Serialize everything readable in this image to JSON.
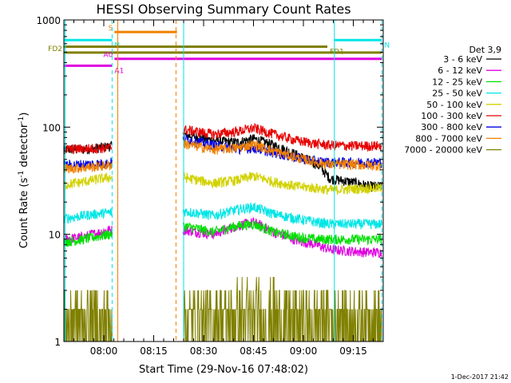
{
  "chart_data": {
    "type": "line",
    "title": "HESSI Observing Summary Count Rates",
    "xlabel": "Start Time (29-Nov-16 07:48:02)",
    "ylabel_parts": [
      "Count Rate (s",
      "-1",
      " detector",
      "-1",
      ")"
    ],
    "yscale": "log",
    "ylim": [
      1,
      1000
    ],
    "xlim_minutes": [
      0,
      96
    ],
    "x_ticks": [
      {
        "label": "08:00",
        "min": 12
      },
      {
        "label": "08:15",
        "min": 27
      },
      {
        "label": "08:30",
        "min": 42
      },
      {
        "label": "08:45",
        "min": 57
      },
      {
        "label": "09:00",
        "min": 72
      },
      {
        "label": "09:15",
        "min": 87
      }
    ],
    "y_ticks": [
      {
        "label": "1",
        "value": 1
      },
      {
        "label": "10",
        "value": 10
      },
      {
        "label": "100",
        "value": 100
      },
      {
        "label": "1000",
        "value": 1000
      }
    ],
    "legend_title": "Det 3,9",
    "legend_position": "right",
    "series": [
      {
        "name": "3 - 6 keV",
        "color": "#000000",
        "points": [
          [
            0,
            62
          ],
          [
            6,
            62
          ],
          [
            10,
            64
          ],
          [
            13.5,
            66
          ],
          [
            36,
            85
          ],
          [
            45,
            75
          ],
          [
            52,
            72
          ],
          [
            57,
            78
          ],
          [
            63,
            68
          ],
          [
            70,
            55
          ],
          [
            76,
            45
          ],
          [
            80,
            33
          ],
          [
            86,
            31
          ],
          [
            92,
            28
          ]
        ]
      },
      {
        "name": "6 - 12 keV",
        "color": "#e000e0",
        "points": [
          [
            0,
            9
          ],
          [
            6,
            9.5
          ],
          [
            13.5,
            11
          ],
          [
            36,
            11
          ],
          [
            45,
            10
          ],
          [
            52,
            12
          ],
          [
            57,
            13
          ],
          [
            63,
            10.5
          ],
          [
            70,
            8.8
          ],
          [
            76,
            8
          ],
          [
            80,
            7.2
          ],
          [
            86,
            7
          ],
          [
            92,
            6.8
          ]
        ]
      },
      {
        "name": "12 - 25 keV",
        "color": "#00e000",
        "points": [
          [
            0,
            8.5
          ],
          [
            6,
            9
          ],
          [
            13.5,
            10
          ],
          [
            36,
            12
          ],
          [
            45,
            10.5
          ],
          [
            52,
            12
          ],
          [
            57,
            12.5
          ],
          [
            63,
            10.5
          ],
          [
            70,
            9.5
          ],
          [
            76,
            9
          ],
          [
            80,
            9
          ],
          [
            86,
            9
          ],
          [
            92,
            9
          ]
        ]
      },
      {
        "name": "25 - 50 keV",
        "color": "#00e6e6",
        "points": [
          [
            0,
            14
          ],
          [
            6,
            15
          ],
          [
            13.5,
            16
          ],
          [
            36,
            16.5
          ],
          [
            45,
            15
          ],
          [
            52,
            17
          ],
          [
            57,
            18
          ],
          [
            63,
            15.5
          ],
          [
            70,
            14
          ],
          [
            76,
            13
          ],
          [
            80,
            12.5
          ],
          [
            86,
            12.5
          ],
          [
            92,
            12.5
          ]
        ]
      },
      {
        "name": "50 - 100 keV",
        "color": "#d2d200",
        "points": [
          [
            0,
            29
          ],
          [
            6,
            31
          ],
          [
            13.5,
            34
          ],
          [
            36,
            34
          ],
          [
            45,
            30
          ],
          [
            52,
            32
          ],
          [
            57,
            35
          ],
          [
            63,
            31
          ],
          [
            70,
            28
          ],
          [
            76,
            27
          ],
          [
            80,
            26
          ],
          [
            86,
            26.5
          ],
          [
            92,
            27
          ]
        ]
      },
      {
        "name": "100 - 300 keV",
        "color": "#e60000",
        "points": [
          [
            0,
            62
          ],
          [
            6,
            63
          ],
          [
            13.5,
            64
          ],
          [
            36,
            95
          ],
          [
            45,
            86
          ],
          [
            52,
            91
          ],
          [
            57,
            98
          ],
          [
            63,
            86
          ],
          [
            70,
            75
          ],
          [
            76,
            70
          ],
          [
            80,
            68
          ],
          [
            86,
            67
          ],
          [
            92,
            67
          ]
        ]
      },
      {
        "name": "300 - 800 keV",
        "color": "#0000e6",
        "points": [
          [
            0,
            44
          ],
          [
            6,
            45
          ],
          [
            13.5,
            46
          ],
          [
            36,
            78
          ],
          [
            45,
            68
          ],
          [
            52,
            63
          ],
          [
            57,
            64
          ],
          [
            63,
            58
          ],
          [
            70,
            52
          ],
          [
            76,
            48
          ],
          [
            80,
            47
          ],
          [
            86,
            47
          ],
          [
            92,
            47
          ]
        ]
      },
      {
        "name": "800 - 7000 keV",
        "color": "#f08000",
        "points": [
          [
            0,
            41
          ],
          [
            6,
            42
          ],
          [
            13.5,
            44
          ],
          [
            36,
            70
          ],
          [
            45,
            62
          ],
          [
            52,
            64
          ],
          [
            57,
            69
          ],
          [
            63,
            60
          ],
          [
            70,
            52
          ],
          [
            76,
            47
          ],
          [
            80,
            45
          ],
          [
            86,
            45
          ],
          [
            92,
            44
          ]
        ]
      },
      {
        "name": "7000 - 20000 keV",
        "color": "#808000",
        "points": [
          [
            0,
            2
          ],
          [
            6,
            2
          ],
          [
            13.5,
            1.9
          ],
          [
            36,
            1.9
          ],
          [
            45,
            2.2
          ],
          [
            52,
            3.5
          ],
          [
            57,
            4
          ],
          [
            63,
            2.8
          ],
          [
            70,
            2.2
          ],
          [
            76,
            2
          ],
          [
            80,
            2
          ],
          [
            86,
            2
          ],
          [
            92,
            2
          ]
        ]
      }
    ],
    "vertical_lines": [
      {
        "min": 0.4,
        "color": "#00e6e6",
        "style": "solid"
      },
      {
        "min": 14.5,
        "color": "#00e6e6",
        "style": "dashed"
      },
      {
        "min": 16.2,
        "color": "#f08000",
        "style": "solid"
      },
      {
        "min": 33.7,
        "color": "#f08000",
        "style": "dashed"
      },
      {
        "min": 36.0,
        "color": "#00e6e6",
        "style": "solid"
      },
      {
        "min": 81.3,
        "color": "#00e6e6",
        "style": "solid"
      },
      {
        "min": 95.6,
        "color": "#00e6e6",
        "style": "dashed"
      }
    ],
    "flag_bars": [
      {
        "label": "S",
        "color": "#f08000",
        "x0": 15.2,
        "x1": 34.0,
        "y": 772
      },
      {
        "label": "N",
        "color": "#00e6e6",
        "x0": 0,
        "x1": 14.5,
        "y": 648
      },
      {
        "label": "N",
        "color": "#00e6e6",
        "x0": 81.3,
        "x1": 95.6,
        "y": 648
      },
      {
        "label": "FD1",
        "color": "#808000",
        "x0": 0,
        "x1": 79.2,
        "y": 563
      },
      {
        "label": "FD2",
        "color": "#808000",
        "x0": 0,
        "x1": 95.6,
        "y": 496
      },
      {
        "label": "A0",
        "color": "#e000e0",
        "x0": 15.2,
        "x1": 95.6,
        "y": 434
      },
      {
        "label": "A1",
        "color": "#e000e0",
        "x0": 0,
        "x1": 14.5,
        "y": 374
      }
    ],
    "footer_date": "1-Dec-2017 21:42"
  }
}
